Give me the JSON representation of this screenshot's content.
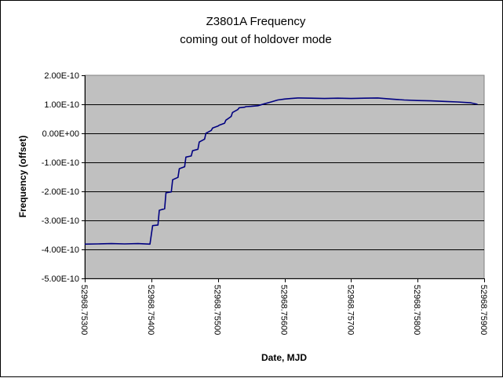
{
  "chart_data": {
    "type": "line",
    "title": "Z3801A Frequency",
    "subtitle": "coming out of holdover mode",
    "xlabel": "Date, MJD",
    "ylabel": "Frequency (offset)",
    "xlim": [
      52968.753,
      52968.759
    ],
    "ylim": [
      -5e-10,
      2e-10
    ],
    "grid": true,
    "legend": "none",
    "x_ticks": [
      52968.753,
      52968.754,
      52968.755,
      52968.756,
      52968.757,
      52968.758,
      52968.759
    ],
    "x_tick_labels": [
      "52968.75300",
      "52968.75400",
      "52968.75500",
      "52968.75600",
      "52968.75700",
      "52968.75800",
      "52968.75900"
    ],
    "y_ticks": [
      2e-10,
      1e-10,
      0.0,
      -1e-10,
      -2e-10,
      -3e-10,
      -4e-10,
      -5e-10
    ],
    "y_tick_labels": [
      "2.00E-10",
      "1.00E-10",
      "0.00E+00",
      "-1.00E-10",
      "-2.00E-10",
      "-3.00E-10",
      "-4.00E-10",
      "-5.00E-10"
    ],
    "colors": {
      "plot_bg": "#c0c0c0",
      "line": "#000080",
      "grid": "#000000"
    },
    "series": [
      {
        "x": [
          52968.753,
          52968.7532,
          52968.7534,
          52968.7536,
          52968.7538,
          52968.75398,
          52968.754,
          52968.75402,
          52968.7541,
          52968.75412,
          52968.7542,
          52968.75422,
          52968.7543,
          52968.75432,
          52968.7544,
          52968.75442,
          52968.7545,
          52968.75452,
          52968.7546,
          52968.75462,
          52968.7547,
          52968.75472,
          52968.7548,
          52968.75482,
          52968.7549,
          52968.75492,
          52968.755,
          52968.75502,
          52968.7551,
          52968.75512,
          52968.7552,
          52968.75522,
          52968.7553,
          52968.75532,
          52968.7554,
          52968.75542,
          52968.7555,
          52968.7556,
          52968.7557,
          52968.7558,
          52968.7559,
          52968.756,
          52968.7561,
          52968.7562,
          52968.7564,
          52968.7566,
          52968.7568,
          52968.757,
          52968.7572,
          52968.7574,
          52968.7576,
          52968.7578,
          52968.758,
          52968.7582,
          52968.7584,
          52968.7586,
          52968.7588,
          52968.7589
        ],
        "values": [
          -3.82e-10,
          -3.81e-10,
          -3.8e-10,
          -3.81e-10,
          -3.8e-10,
          -3.82e-10,
          -3.5e-10,
          -3.18e-10,
          -3.16e-10,
          -2.65e-10,
          -2.6e-10,
          -2.05e-10,
          -2.02e-10,
          -1.6e-10,
          -1.52e-10,
          -1.22e-10,
          -1.15e-10,
          -8.2e-11,
          -7.8e-11,
          -6e-11,
          -5.5e-11,
          -3e-11,
          -2e-11,
          0.0,
          1e-11,
          1.8e-11,
          2.5e-11,
          2.8e-11,
          3.5e-11,
          4.5e-11,
          5.8e-11,
          7.2e-11,
          8.2e-11,
          8.8e-11,
          9e-11,
          9.2e-11,
          9.3e-11,
          9.5e-11,
          1.02e-10,
          1.08e-10,
          1.15e-10,
          1.18e-10,
          1.2e-10,
          1.22e-10,
          1.21e-10,
          1.2e-10,
          1.21e-10,
          1.2e-10,
          1.21e-10,
          1.22e-10,
          1.18e-10,
          1.15e-10,
          1.13e-10,
          1.12e-10,
          1.1e-10,
          1.08e-10,
          1.05e-10,
          1e-10
        ]
      }
    ]
  }
}
